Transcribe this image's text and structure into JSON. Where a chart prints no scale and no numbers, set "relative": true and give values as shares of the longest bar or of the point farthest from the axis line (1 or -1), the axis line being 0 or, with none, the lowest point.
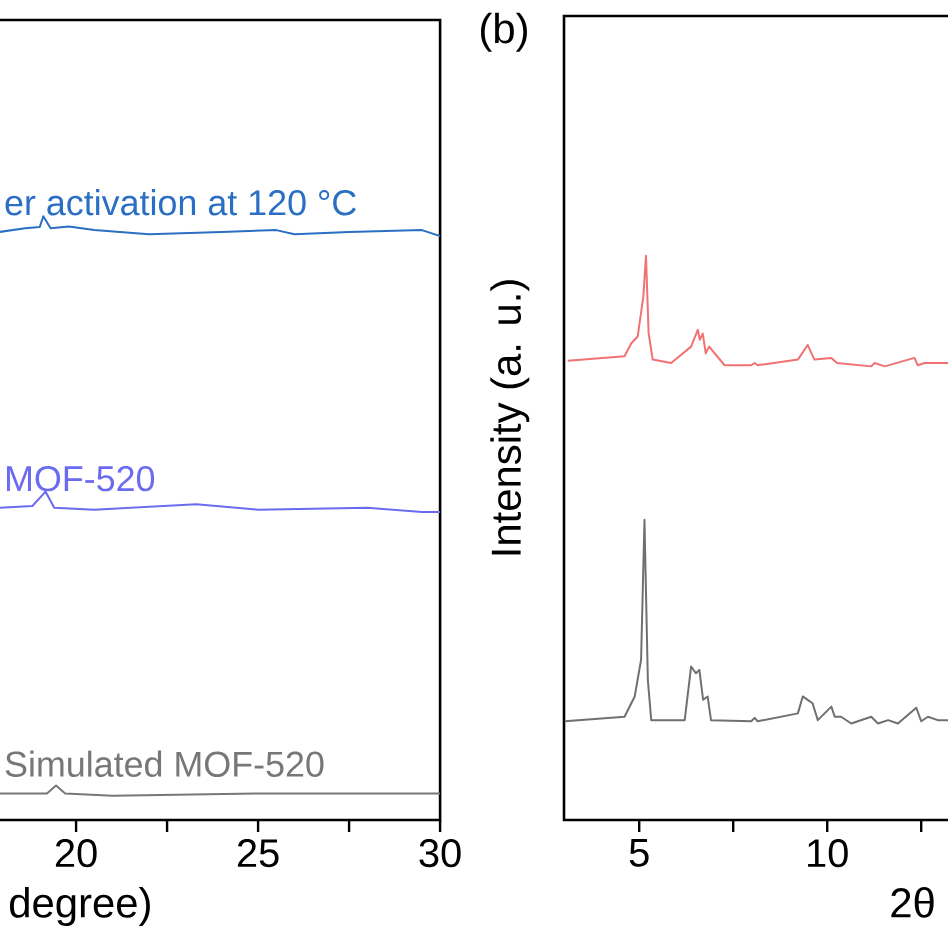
{
  "chart_data": [
    {
      "type": "line",
      "relative": true,
      "tick_labels": "x",
      "xlabel": "degree)",
      "xlim": [
        17.8,
        30
      ],
      "xticks": [
        20,
        {
          "value": 22.5,
          "label": null
        },
        25,
        {
          "value": 27.5,
          "label": null
        },
        30
      ],
      "series": [
        {
          "name": "er activation at 120 °C",
          "color": "#2a6fc4",
          "x": [
            17.9,
            18.6,
            19.0,
            19.1,
            19.3,
            19.8,
            20.5,
            22,
            24,
            25.5,
            26,
            27.5,
            29.5,
            30
          ],
          "values": [
            0.974,
            0.98,
            0.982,
            1.0,
            0.98,
            0.983,
            0.977,
            0.97,
            0.974,
            0.977,
            0.97,
            0.974,
            0.977,
            0.967
          ]
        },
        {
          "name": "MOF-520",
          "color": "#6b6bef",
          "x": [
            17.9,
            18.8,
            19.16,
            19.4,
            20.5,
            23.3,
            25,
            28,
            29.5,
            30
          ],
          "values": [
            0.517,
            0.52,
            0.544,
            0.517,
            0.514,
            0.523,
            0.514,
            0.517,
            0.51,
            0.51
          ]
        },
        {
          "name": "Simulated MOF-520",
          "color": "#777777",
          "x": [
            17.9,
            19.2,
            19.45,
            19.7,
            21,
            25,
            30
          ],
          "values": [
            0.044,
            0.044,
            0.057,
            0.044,
            0.04,
            0.044,
            0.044
          ]
        }
      ]
    },
    {
      "type": "line",
      "relative": true,
      "tick_labels": "x",
      "title": "(b)",
      "xlabel": "2θ",
      "ylabel": "Intensity (a. u.)",
      "xlim": [
        3,
        13.3
      ],
      "xticks": [
        5,
        {
          "value": 7.5,
          "label": null
        },
        10,
        {
          "value": 12.5,
          "label": null
        }
      ],
      "series": [
        {
          "color": "#f07272",
          "x": [
            3.1,
            4.61,
            4.79,
            4.96,
            5.11,
            5.18,
            5.25,
            5.36,
            5.85,
            6.38,
            6.56,
            6.61,
            6.69,
            6.77,
            6.86,
            7.27,
            7.98,
            8.07,
            8.15,
            9.22,
            9.48,
            9.66,
            10.11,
            10.26,
            11.17,
            11.26,
            11.53,
            12.32,
            12.41,
            12.59,
            13.24
          ],
          "values": [
            0.814,
            0.822,
            0.845,
            0.857,
            0.928,
            1.0,
            0.863,
            0.816,
            0.81,
            0.839,
            0.869,
            0.851,
            0.862,
            0.827,
            0.839,
            0.806,
            0.806,
            0.81,
            0.806,
            0.816,
            0.842,
            0.816,
            0.819,
            0.81,
            0.804,
            0.81,
            0.804,
            0.819,
            0.806,
            0.81,
            0.81
          ]
        },
        {
          "color": "#707070",
          "x": [
            3.02,
            4.61,
            4.88,
            5.05,
            5.14,
            5.23,
            5.32,
            6.21,
            6.38,
            6.51,
            6.6,
            6.7,
            6.82,
            6.91,
            7.98,
            8.07,
            8.15,
            9.22,
            9.35,
            9.48,
            9.61,
            9.75,
            10.11,
            10.2,
            10.37,
            10.64,
            11.17,
            11.35,
            11.62,
            11.88,
            12.37,
            12.5,
            12.68,
            12.94,
            13.24
          ],
          "values": [
            0.175,
            0.183,
            0.219,
            0.284,
            0.532,
            0.248,
            0.177,
            0.177,
            0.272,
            0.26,
            0.266,
            0.213,
            0.219,
            0.177,
            0.175,
            0.181,
            0.175,
            0.189,
            0.219,
            0.213,
            0.207,
            0.177,
            0.201,
            0.183,
            0.183,
            0.171,
            0.183,
            0.171,
            0.177,
            0.171,
            0.199,
            0.175,
            0.183,
            0.177,
            0.177
          ]
        }
      ]
    }
  ]
}
